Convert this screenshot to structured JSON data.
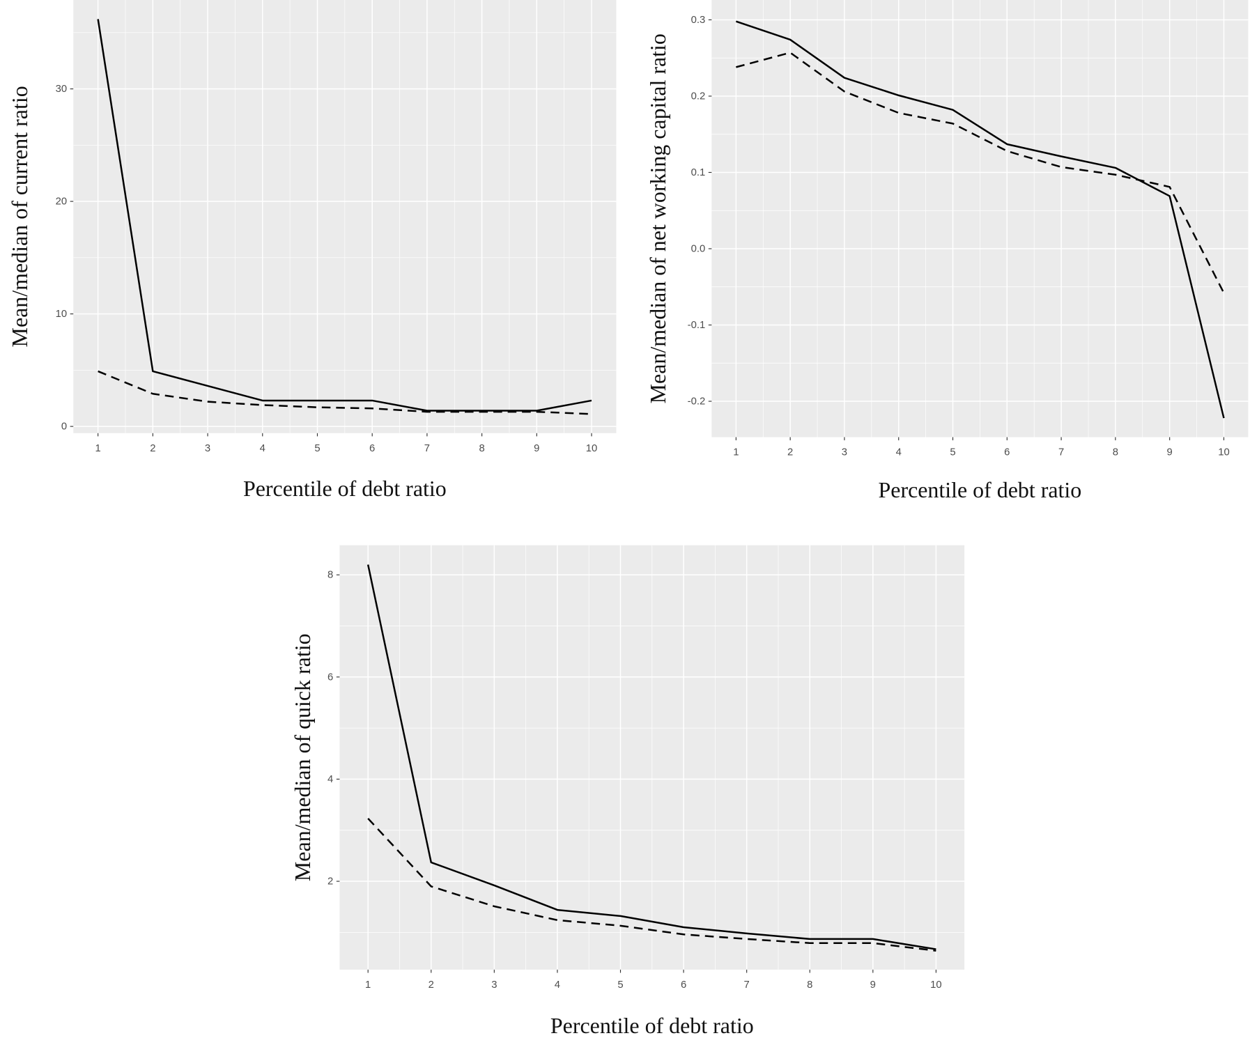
{
  "chart_data": [
    {
      "type": "line",
      "xlabel": "Percentile of debt ratio",
      "ylabel": "Mean/median of current ratio",
      "x": [
        1,
        2,
        3,
        4,
        5,
        6,
        7,
        8,
        9,
        10
      ],
      "x_ticks": [
        "1",
        "2",
        "3",
        "4",
        "5",
        "6",
        "7",
        "8",
        "9",
        "10"
      ],
      "y_ticks": [
        0,
        10,
        20,
        30
      ],
      "y_tick_labels": [
        "0",
        "10",
        "20",
        "30"
      ],
      "xlim": [
        0.55,
        10.45
      ],
      "ylim": [
        -0.6,
        37.9
      ],
      "grid": true,
      "series": [
        {
          "style": "solid",
          "values": [
            36.2,
            4.9,
            3.6,
            2.3,
            2.3,
            2.3,
            1.4,
            1.4,
            1.4,
            2.3
          ]
        },
        {
          "style": "dashed",
          "values": [
            4.9,
            2.9,
            2.2,
            1.9,
            1.7,
            1.6,
            1.3,
            1.3,
            1.3,
            1.1
          ]
        }
      ]
    },
    {
      "type": "line",
      "xlabel": "Percentile of debt ratio",
      "ylabel": "Mean/median of net working capital ratio",
      "x": [
        1,
        2,
        3,
        4,
        5,
        6,
        7,
        8,
        9,
        10
      ],
      "x_ticks": [
        "1",
        "2",
        "3",
        "4",
        "5",
        "6",
        "7",
        "8",
        "9",
        "10"
      ],
      "y_ticks": [
        -0.2,
        -0.1,
        0.0,
        0.1,
        0.2,
        0.3
      ],
      "y_tick_labels": [
        "-0.2",
        "-0.1",
        "0.0",
        "0.1",
        "0.2",
        "0.3"
      ],
      "xlim": [
        0.55,
        10.45
      ],
      "ylim": [
        -0.247,
        0.326
      ],
      "grid": true,
      "series": [
        {
          "style": "solid",
          "values": [
            0.298,
            0.274,
            0.224,
            0.201,
            0.182,
            0.137,
            0.121,
            0.106,
            0.069,
            -0.222
          ]
        },
        {
          "style": "dashed",
          "values": [
            0.238,
            0.257,
            0.206,
            0.178,
            0.164,
            0.128,
            0.107,
            0.097,
            0.081,
            -0.058
          ]
        }
      ]
    },
    {
      "type": "line",
      "xlabel": "Percentile of debt ratio",
      "ylabel": "Mean/median of quick ratio",
      "x": [
        1,
        2,
        3,
        4,
        5,
        6,
        7,
        8,
        9,
        10
      ],
      "x_ticks": [
        "1",
        "2",
        "3",
        "4",
        "5",
        "6",
        "7",
        "8",
        "9",
        "10"
      ],
      "y_ticks": [
        2,
        4,
        6,
        8
      ],
      "y_tick_labels": [
        "2",
        "4",
        "6",
        "8"
      ],
      "xlim": [
        0.55,
        10.45
      ],
      "ylim": [
        0.27,
        8.58
      ],
      "grid": true,
      "series": [
        {
          "style": "solid",
          "values": [
            8.2,
            2.37,
            1.92,
            1.44,
            1.32,
            1.1,
            0.98,
            0.87,
            0.87,
            0.67
          ]
        },
        {
          "style": "dashed",
          "values": [
            3.23,
            1.9,
            1.51,
            1.24,
            1.13,
            0.96,
            0.87,
            0.79,
            0.79,
            0.64
          ]
        }
      ]
    }
  ]
}
